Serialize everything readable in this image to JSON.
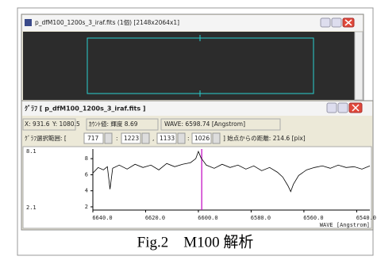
{
  "window1": {
    "title": "p_dfM100_1200s_3_iraf.fits (1個) [2148x2064x1]"
  },
  "window2": {
    "title": "ｸﾞﾗﾌ [ p_dfM100_1200s_3_iraf.fits ]",
    "status": [
      "X: 931.6",
      "Y: 1080.5",
      "ｶｳﾝﾄ値: 輝度 8.69",
      "WAVE: 6598.74 [Angstrom]"
    ],
    "range": {
      "label": "ｸﾞﾗﾌ選択範囲: [",
      "fields": [
        "717",
        "1223",
        "1133",
        "1026"
      ],
      "separators": [
        ":",
        ",",
        ":"
      ],
      "tail": "] 始点からの距離: 214.6 [pix]"
    }
  },
  "chart_data": {
    "type": "line",
    "ymax_label": "8.1",
    "ymin_label": "2.1",
    "x": [
      6640,
      6638,
      6636,
      6634.5,
      6633.5,
      6632.5,
      6630,
      6627,
      6624,
      6621,
      6618,
      6615,
      6612,
      6609,
      6606,
      6603,
      6601,
      6600,
      6599,
      6597,
      6594,
      6591,
      6588,
      6585,
      6582,
      6579,
      6576,
      6573,
      6570,
      6568,
      6566,
      6565,
      6564,
      6562,
      6559,
      6556,
      6553,
      6550,
      6547,
      6544,
      6541,
      6538,
      6535
    ],
    "values": [
      6.2,
      6.9,
      6.6,
      7.0,
      4.2,
      6.8,
      7.2,
      6.7,
      7.3,
      6.9,
      7.2,
      6.6,
      7.4,
      7.0,
      7.3,
      7.5,
      8.0,
      8.9,
      8.1,
      7.2,
      6.8,
      7.3,
      6.9,
      7.2,
      6.7,
      7.1,
      6.5,
      6.9,
      6.3,
      5.7,
      4.6,
      3.9,
      4.8,
      5.9,
      6.6,
      6.9,
      7.1,
      6.8,
      7.2,
      6.9,
      7.0,
      6.7,
      7.1
    ],
    "color": "#000000",
    "cursor_x": 6598.74,
    "cursor_color": "#c000c0",
    "xlim": [
      6640,
      6535
    ],
    "ylim": [
      1.6,
      9.2
    ],
    "xticks": [
      {
        "value": 6640,
        "label": "6640.0"
      },
      {
        "value": 6620,
        "label": "6620.0"
      },
      {
        "value": 6600,
        "label": "6600.0"
      },
      {
        "value": 6580,
        "label": "6580.0"
      },
      {
        "value": 6560,
        "label": "6560.0"
      },
      {
        "value": 6540,
        "label": "6540.0"
      }
    ],
    "yticks": [
      2,
      4,
      6,
      8
    ],
    "xlabel": "WAVE [Angstrom]"
  },
  "caption": "Fig.2　M100 解析"
}
